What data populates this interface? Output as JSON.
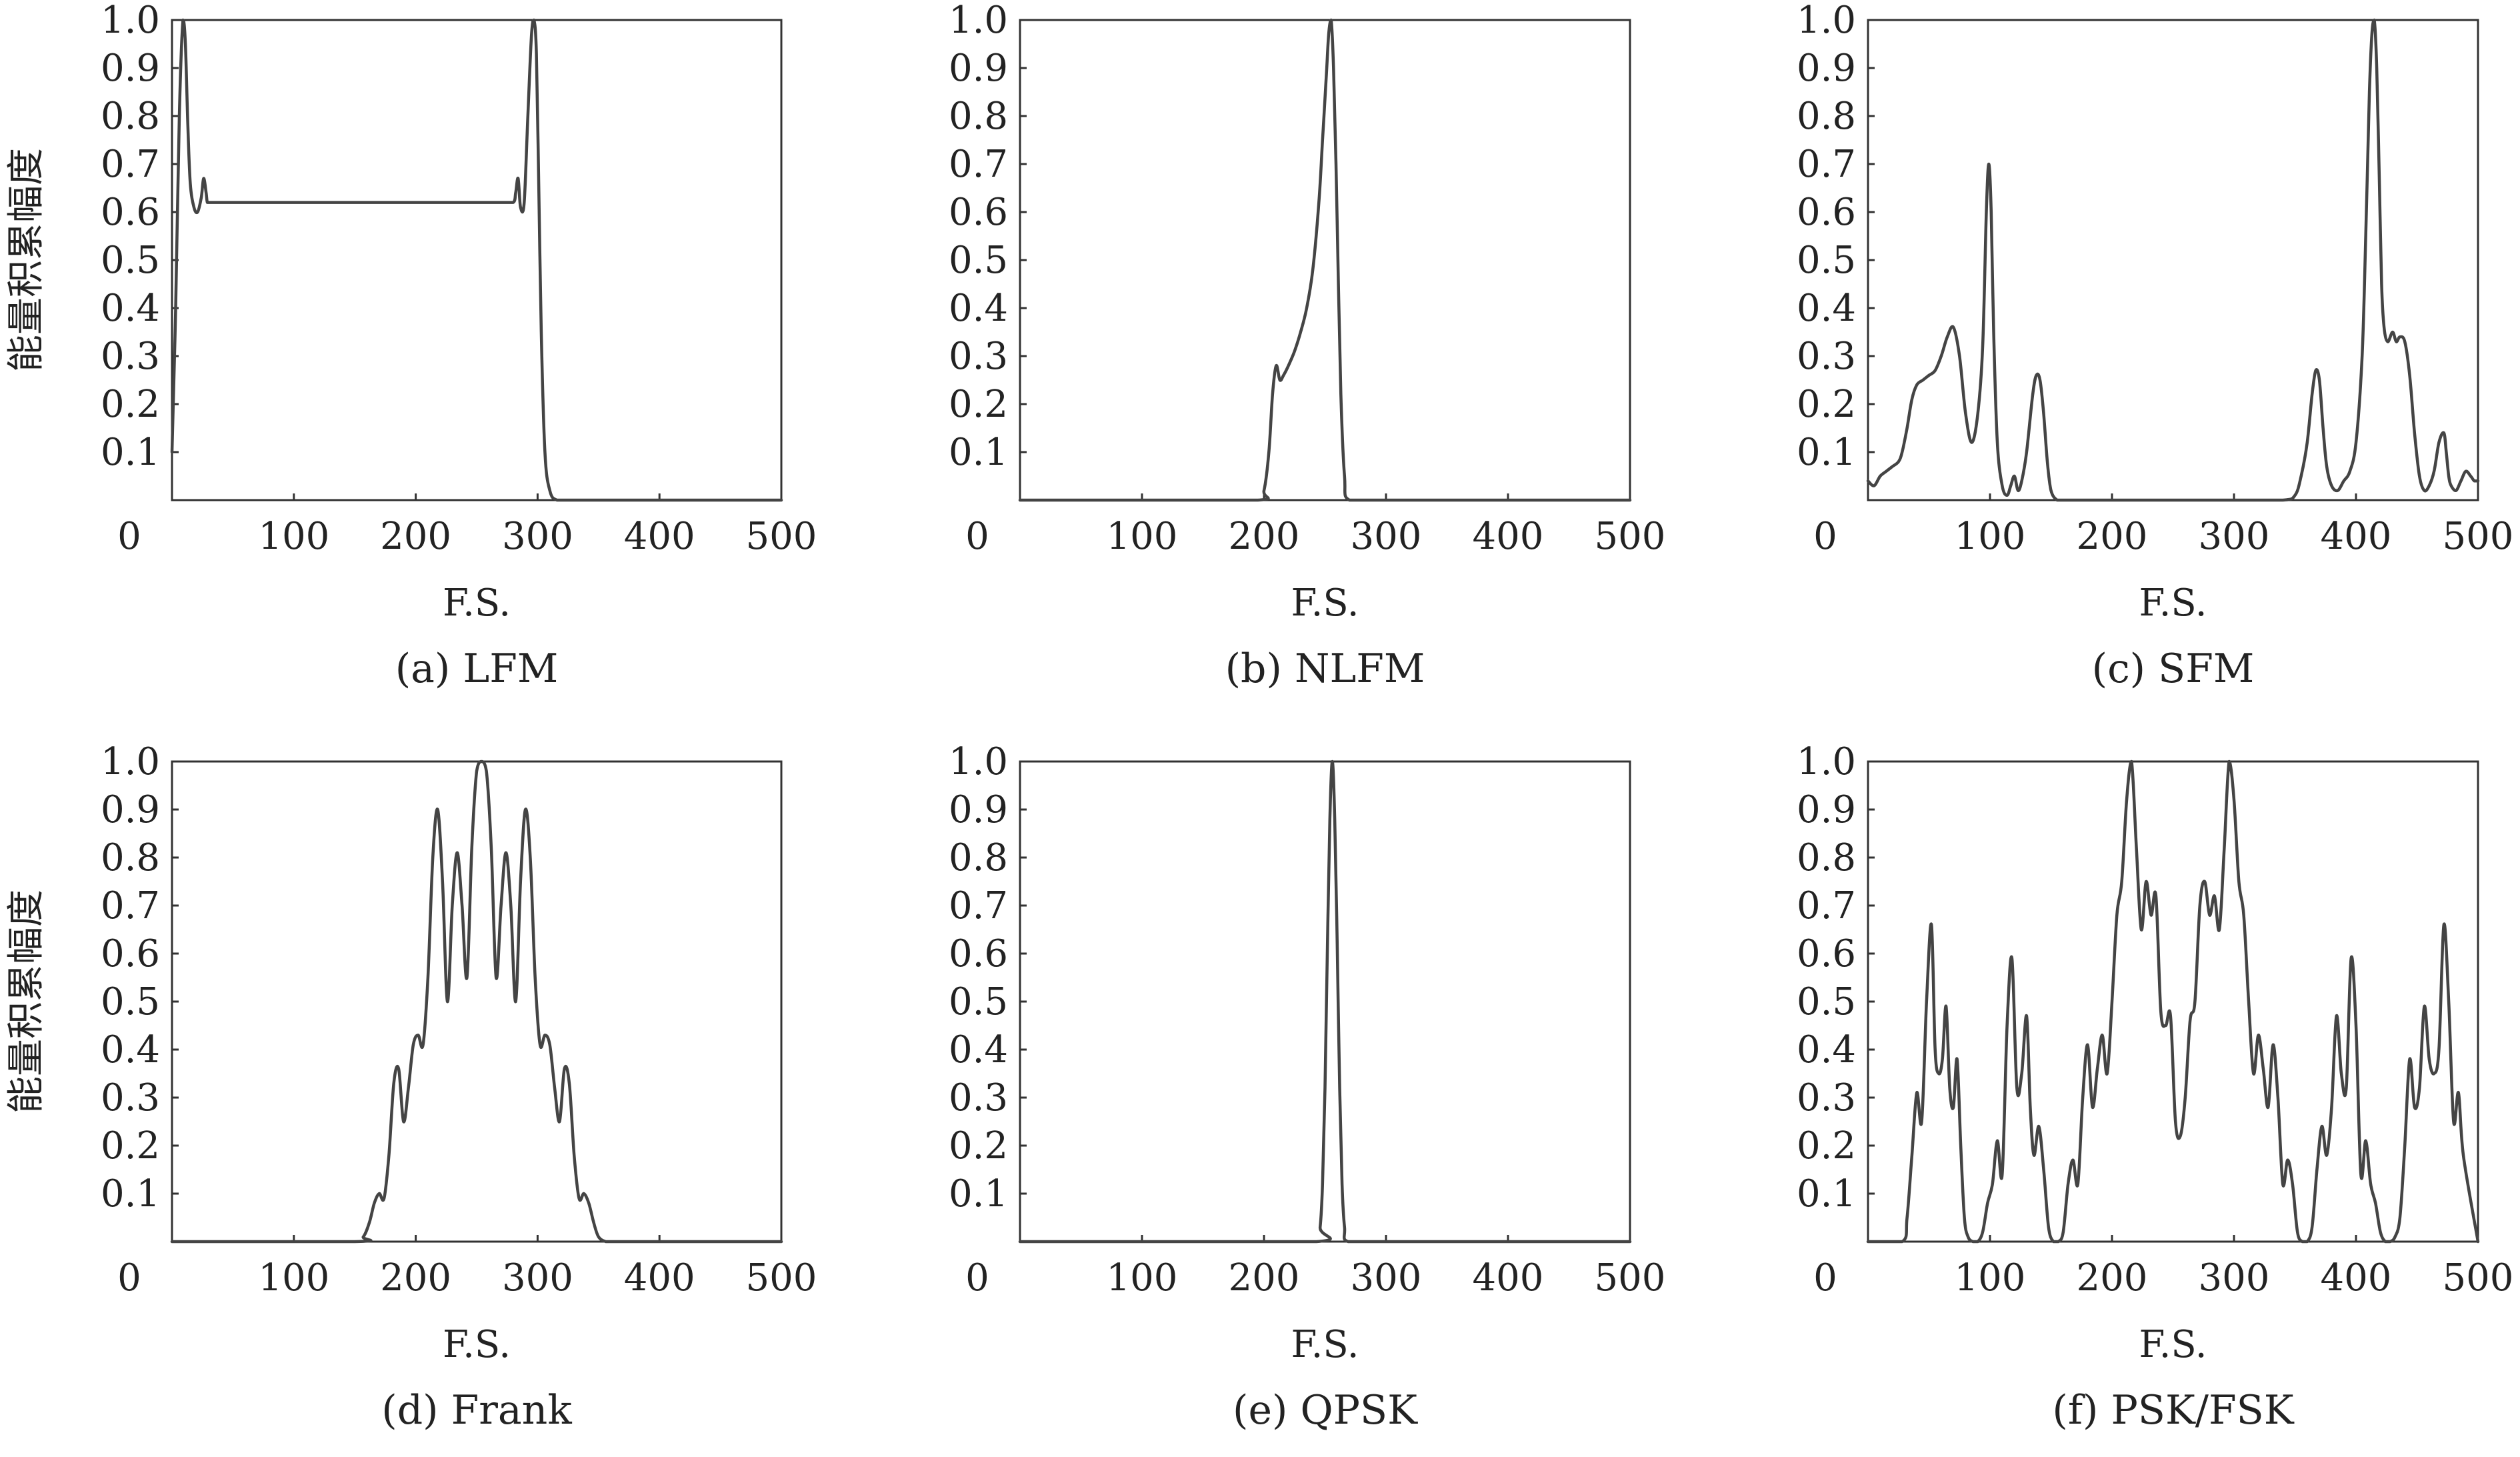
{
  "chart_data": [
    {
      "type": "line",
      "caption": "(a) LFM",
      "xlabel": "F.S.",
      "ylabel": "能量积累幅度",
      "xlim": [
        0,
        500
      ],
      "ylim": [
        0,
        1.0
      ],
      "xticks": [
        0,
        100,
        200,
        300,
        400,
        500
      ],
      "yticks": [
        0.1,
        0.2,
        0.3,
        0.4,
        0.5,
        0.6,
        0.7,
        0.8,
        0.9,
        1.0
      ],
      "ytick_labels": [
        "0.1",
        "0.2",
        "0.3",
        "0.4",
        "0.5",
        "0.6",
        "0.7",
        "0.8",
        "0.9",
        "1.0"
      ],
      "grid": false,
      "series": [
        {
          "x": [
            0,
            3,
            6,
            9,
            11,
            13,
            15,
            18,
            21,
            24,
            26,
            28,
            29,
            31,
            40,
            100,
            200,
            270,
            280,
            282,
            284,
            286,
            289,
            292,
            295,
            297,
            299,
            301,
            303,
            306,
            310,
            316,
            330,
            400,
            500
          ],
          "y": [
            0.1,
            0.4,
            0.8,
            1.0,
            0.95,
            0.78,
            0.66,
            0.61,
            0.6,
            0.63,
            0.67,
            0.64,
            0.62,
            0.62,
            0.62,
            0.62,
            0.62,
            0.62,
            0.62,
            0.64,
            0.67,
            0.61,
            0.62,
            0.8,
            0.97,
            1.0,
            0.93,
            0.65,
            0.35,
            0.1,
            0.02,
            0.0,
            0.0,
            0.0,
            0.0
          ]
        }
      ]
    },
    {
      "type": "line",
      "caption": "(b) NLFM",
      "xlabel": "F.S.",
      "ylabel": "",
      "xlim": [
        0,
        500
      ],
      "ylim": [
        0,
        1.0
      ],
      "xticks": [
        0,
        100,
        200,
        300,
        400,
        500
      ],
      "yticks": [
        0.1,
        0.2,
        0.3,
        0.4,
        0.5,
        0.6,
        0.7,
        0.8,
        0.9,
        1.0
      ],
      "ytick_labels": [
        "0.1",
        "0.2",
        "0.3",
        "0.4",
        "0.5",
        "0.6",
        "0.7",
        "0.8",
        "0.9",
        "1.0"
      ],
      "grid": false,
      "series": [
        {
          "x": [
            0,
            100,
            195,
            200,
            204,
            207,
            210,
            213,
            216,
            220,
            225,
            230,
            235,
            240,
            245,
            248,
            251,
            253,
            255,
            257,
            259,
            261,
            263,
            266,
            270,
            300,
            500
          ],
          "y": [
            0.0,
            0.0,
            0.0,
            0.02,
            0.1,
            0.22,
            0.28,
            0.25,
            0.26,
            0.28,
            0.31,
            0.35,
            0.4,
            0.48,
            0.62,
            0.75,
            0.88,
            0.97,
            1.0,
            0.9,
            0.7,
            0.45,
            0.22,
            0.05,
            0.0,
            0.0,
            0.0
          ]
        }
      ]
    },
    {
      "type": "line",
      "caption": "(c) SFM",
      "xlabel": "F.S.",
      "ylabel": "",
      "xlim": [
        0,
        500
      ],
      "ylim": [
        0,
        1.0
      ],
      "xticks": [
        0,
        100,
        200,
        300,
        400,
        500
      ],
      "xtick_labels": [
        "0",
        "100",
        "200",
        "300",
        "400",
        "500"
      ],
      "yticks": [
        0.1,
        0.2,
        0.3,
        0.4,
        0.5,
        0.6,
        0.7,
        0.8,
        0.9,
        1.0
      ],
      "ytick_labels": [
        "0.1",
        "0.2",
        "0.3",
        "0.4",
        "0.5",
        "0.6",
        "0.7",
        "0.8",
        "0.9",
        "1.0"
      ],
      "grid": false,
      "series": [
        {
          "x": [
            0,
            5,
            10,
            15,
            20,
            25,
            28,
            32,
            36,
            40,
            45,
            50,
            55,
            60,
            65,
            70,
            75,
            80,
            85,
            90,
            94,
            97,
            99,
            101,
            103,
            106,
            110,
            114,
            117,
            120,
            123,
            126,
            130,
            135,
            138,
            141,
            144,
            147,
            150,
            155,
            160,
            200,
            250,
            300,
            340,
            350,
            355,
            360,
            364,
            367,
            370,
            373,
            376,
            380,
            385,
            390,
            395,
            400,
            405,
            408,
            411,
            413,
            415,
            417,
            419,
            421,
            423,
            426,
            430,
            433,
            436,
            440,
            444,
            448,
            452,
            456,
            460,
            464,
            468,
            472,
            474,
            476,
            478,
            482,
            486,
            490,
            494,
            497,
            500
          ],
          "y": [
            0.04,
            0.03,
            0.05,
            0.06,
            0.07,
            0.08,
            0.1,
            0.15,
            0.21,
            0.24,
            0.25,
            0.26,
            0.27,
            0.3,
            0.34,
            0.36,
            0.3,
            0.18,
            0.12,
            0.18,
            0.32,
            0.6,
            0.7,
            0.6,
            0.35,
            0.12,
            0.03,
            0.01,
            0.03,
            0.05,
            0.02,
            0.04,
            0.1,
            0.22,
            0.26,
            0.25,
            0.18,
            0.08,
            0.02,
            0.0,
            0.0,
            0.0,
            0.0,
            0.0,
            0.0,
            0.01,
            0.05,
            0.12,
            0.22,
            0.27,
            0.25,
            0.15,
            0.07,
            0.03,
            0.02,
            0.04,
            0.06,
            0.12,
            0.3,
            0.55,
            0.85,
            0.97,
            1.0,
            0.9,
            0.68,
            0.45,
            0.36,
            0.33,
            0.35,
            0.33,
            0.34,
            0.33,
            0.26,
            0.14,
            0.05,
            0.02,
            0.03,
            0.06,
            0.12,
            0.14,
            0.1,
            0.05,
            0.03,
            0.02,
            0.04,
            0.06,
            0.05,
            0.04,
            0.04
          ]
        }
      ]
    },
    {
      "type": "line",
      "caption": "(d) Frank",
      "xlabel": "F.S.",
      "ylabel": "能量积累幅度",
      "xlim": [
        0,
        500
      ],
      "ylim": [
        0,
        1.0
      ],
      "xticks": [
        0,
        100,
        200,
        300,
        400,
        500
      ],
      "yticks": [
        0.1,
        0.2,
        0.3,
        0.4,
        0.5,
        0.6,
        0.7,
        0.8,
        0.9,
        1.0
      ],
      "ytick_labels": [
        "0.1",
        "0.2",
        "0.3",
        "0.4",
        "0.5",
        "0.6",
        "0.7",
        "0.8",
        "0.9",
        "1.0"
      ],
      "grid": false,
      "series": [
        {
          "x": [
            0,
            150,
            157,
            162,
            166,
            170,
            174,
            178,
            182,
            186,
            190,
            194,
            198,
            202,
            206,
            210,
            214,
            218,
            222,
            226,
            230,
            234,
            238,
            242,
            246,
            250,
            254,
            258,
            262,
            266,
            270,
            274,
            278,
            282,
            286,
            290,
            294,
            298,
            302,
            306,
            310,
            314,
            318,
            322,
            326,
            330,
            334,
            338,
            342,
            346,
            350,
            356,
            362,
            370,
            500
          ],
          "y": [
            0.0,
            0.0,
            0.01,
            0.04,
            0.08,
            0.1,
            0.09,
            0.18,
            0.33,
            0.36,
            0.25,
            0.32,
            0.41,
            0.43,
            0.41,
            0.55,
            0.8,
            0.9,
            0.75,
            0.5,
            0.7,
            0.81,
            0.7,
            0.55,
            0.82,
            0.98,
            1.0,
            0.98,
            0.82,
            0.55,
            0.7,
            0.81,
            0.7,
            0.5,
            0.75,
            0.9,
            0.8,
            0.55,
            0.41,
            0.43,
            0.41,
            0.32,
            0.25,
            0.36,
            0.33,
            0.18,
            0.09,
            0.1,
            0.08,
            0.04,
            0.01,
            0.0,
            0.0,
            0.0,
            0.0
          ]
        }
      ]
    },
    {
      "type": "line",
      "caption": "(e) QPSK",
      "xlabel": "F.S.",
      "ylabel": "",
      "xlim": [
        0,
        500
      ],
      "ylim": [
        0,
        1.0
      ],
      "xticks": [
        0,
        100,
        200,
        300,
        400,
        500
      ],
      "yticks": [
        0.1,
        0.2,
        0.3,
        0.4,
        0.5,
        0.6,
        0.7,
        0.8,
        0.9,
        1.0
      ],
      "ytick_labels": [
        "0.1",
        "0.2",
        "0.3",
        "0.4",
        "0.5",
        "0.6",
        "0.7",
        "0.8",
        "0.9",
        "1.0"
      ],
      "grid": false,
      "series": [
        {
          "x": [
            0,
            100,
            243,
            246,
            248,
            250,
            252,
            254,
            256,
            258,
            260,
            262,
            264,
            266,
            269,
            300,
            500
          ],
          "y": [
            0.0,
            0.0,
            0.0,
            0.03,
            0.12,
            0.32,
            0.62,
            0.88,
            1.0,
            0.88,
            0.62,
            0.32,
            0.12,
            0.03,
            0.0,
            0.0,
            0.0
          ]
        }
      ]
    },
    {
      "type": "line",
      "caption": "(f) PSK/FSK",
      "xlabel": "F.S.",
      "ylabel": "",
      "xlim": [
        0,
        500
      ],
      "ylim": [
        0,
        1.0
      ],
      "xticks": [
        0,
        100,
        200,
        300,
        400,
        500
      ],
      "yticks": [
        0.1,
        0.2,
        0.3,
        0.4,
        0.5,
        0.6,
        0.7,
        0.8,
        0.9,
        1.0
      ],
      "ytick_labels": [
        "0.1",
        "0.2",
        "0.3",
        "0.4",
        "0.5",
        "0.6",
        "0.7",
        "0.8",
        "0.9",
        "1.0"
      ],
      "grid": false,
      "series": [
        {
          "x": [
            0,
            28,
            32,
            36,
            40,
            44,
            48,
            52,
            55,
            58,
            61,
            64,
            67,
            70,
            73,
            76,
            79,
            82,
            86,
            90,
            94,
            98,
            102,
            106,
            110,
            114,
            118,
            122,
            126,
            130,
            133,
            136,
            140,
            144,
            148,
            152,
            156,
            160,
            164,
            168,
            172,
            176,
            180,
            184,
            188,
            192,
            196,
            200,
            204,
            208,
            212,
            216,
            220,
            224,
            228,
            232,
            236,
            240,
            244,
            248,
            252,
            256,
            260,
            264,
            268,
            272,
            276,
            280,
            284,
            288,
            292,
            296,
            300,
            304,
            308,
            312,
            316,
            320,
            324,
            328,
            332,
            336,
            340,
            344,
            348,
            352,
            356,
            360,
            364,
            368,
            372,
            376,
            380,
            384,
            388,
            392,
            396,
            400,
            404,
            408,
            412,
            416,
            420,
            424,
            428,
            432,
            436,
            440,
            444,
            448,
            452,
            456,
            460,
            464,
            468,
            472,
            476,
            480,
            484,
            488,
            500
          ],
          "y": [
            0.0,
            0.0,
            0.05,
            0.18,
            0.31,
            0.25,
            0.5,
            0.66,
            0.4,
            0.35,
            0.38,
            0.49,
            0.32,
            0.28,
            0.38,
            0.2,
            0.05,
            0.01,
            0.0,
            0.0,
            0.02,
            0.08,
            0.12,
            0.21,
            0.14,
            0.45,
            0.59,
            0.32,
            0.35,
            0.47,
            0.28,
            0.18,
            0.24,
            0.15,
            0.03,
            0.0,
            0.0,
            0.02,
            0.12,
            0.17,
            0.12,
            0.3,
            0.41,
            0.28,
            0.36,
            0.43,
            0.35,
            0.5,
            0.68,
            0.75,
            0.92,
            1.0,
            0.82,
            0.65,
            0.75,
            0.68,
            0.72,
            0.48,
            0.45,
            0.47,
            0.25,
            0.22,
            0.3,
            0.46,
            0.5,
            0.7,
            0.75,
            0.68,
            0.72,
            0.65,
            0.82,
            1.0,
            0.92,
            0.75,
            0.68,
            0.5,
            0.35,
            0.43,
            0.36,
            0.28,
            0.41,
            0.3,
            0.12,
            0.17,
            0.12,
            0.02,
            0.0,
            0.0,
            0.03,
            0.15,
            0.24,
            0.18,
            0.28,
            0.47,
            0.35,
            0.32,
            0.59,
            0.45,
            0.14,
            0.21,
            0.12,
            0.08,
            0.02,
            0.0,
            0.0,
            0.01,
            0.05,
            0.2,
            0.38,
            0.28,
            0.32,
            0.49,
            0.38,
            0.35,
            0.4,
            0.66,
            0.5,
            0.25,
            0.31,
            0.18,
            0.0
          ]
        }
      ]
    }
  ]
}
